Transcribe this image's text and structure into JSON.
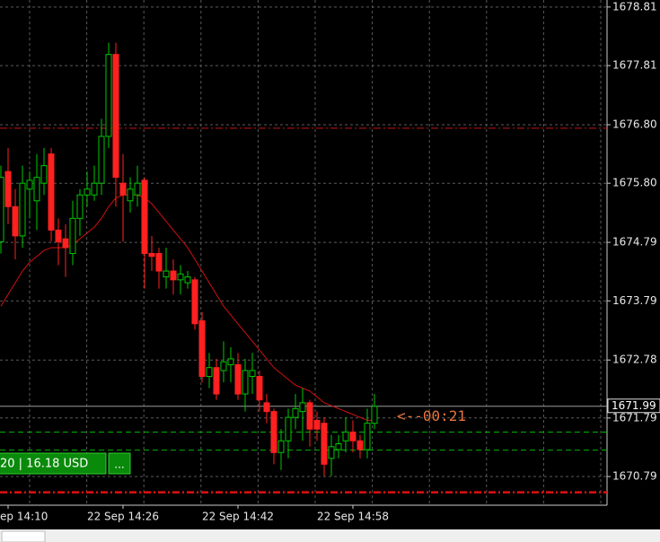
{
  "chart_data": {
    "type": "candlestick",
    "categories": [
      null,
      "ep 14:10",
      null,
      null,
      null,
      null,
      null,
      null,
      null,
      null,
      null,
      null,
      null,
      null,
      null,
      null,
      null,
      "22 Sep 14:26",
      null,
      null,
      null,
      null,
      null,
      null,
      null,
      null,
      null,
      null,
      null,
      null,
      null,
      null,
      null,
      "22 Sep 14:42",
      null,
      null,
      null,
      null,
      null,
      null,
      null,
      null,
      null,
      null,
      null,
      null,
      null,
      null,
      null,
      "22 Sep 14:58",
      null,
      null,
      null
    ],
    "open": [
      1674.8,
      1676.0,
      1675.4,
      1674.9,
      1675.7,
      1675.5,
      1675.8,
      1676.3,
      1675.0,
      1674.85,
      1674.6,
      1675.2,
      1675.6,
      1675.6,
      1675.8,
      1676.6,
      1678.0,
      1675.8,
      1675.5,
      1675.6,
      1675.85,
      1674.6,
      1674.6,
      1674.2,
      1674.3,
      1674.15,
      1674.1,
      1674.15,
      1673.45,
      1672.5,
      1672.65,
      1672.6,
      1672.7,
      1672.7,
      1672.2,
      1672.5,
      1672.5,
      1672.05,
      1671.9,
      1671.2,
      1671.4,
      1671.8,
      1671.9,
      1672.05,
      1671.75,
      1671.7,
      1671.1,
      1671.25,
      1671.4,
      1671.55,
      1671.4,
      1671.25,
      1671.7
    ],
    "high": [
      1676.1,
      1676.4,
      1675.7,
      1676.1,
      1676.0,
      1676.3,
      1676.4,
      1676.4,
      1675.2,
      1675.1,
      1675.5,
      1675.7,
      1676.0,
      1676.1,
      1676.9,
      1678.2,
      1678.2,
      1676.3,
      1675.9,
      1676.1,
      1675.9,
      1674.9,
      1674.7,
      1674.7,
      1674.5,
      1674.4,
      1674.3,
      1674.2,
      1673.6,
      1672.9,
      1672.8,
      1673.1,
      1673.0,
      1672.9,
      1672.8,
      1672.9,
      1672.6,
      1672.2,
      1671.95,
      1671.6,
      1671.95,
      1672.2,
      1672.3,
      1672.1,
      1671.9,
      1671.8,
      1671.5,
      1671.5,
      1671.8,
      1671.75,
      1671.5,
      1671.95,
      1672.2
    ],
    "low": [
      1674.6,
      1675.1,
      1674.5,
      1674.7,
      1675.2,
      1675.0,
      1675.6,
      1674.8,
      1674.4,
      1674.2,
      1674.4,
      1674.9,
      1675.4,
      1675.5,
      1675.6,
      1676.4,
      1675.4,
      1674.8,
      1675.3,
      1675.4,
      1674.0,
      1674.3,
      1674.0,
      1674.0,
      1673.9,
      1673.9,
      1674.0,
      1673.3,
      1672.4,
      1672.3,
      1672.1,
      1672.4,
      1672.4,
      1672.1,
      1671.9,
      1672.2,
      1671.9,
      1671.7,
      1671.0,
      1670.9,
      1671.1,
      1671.6,
      1671.4,
      1671.3,
      1671.4,
      1670.8,
      1670.8,
      1671.1,
      1671.2,
      1671.2,
      1671.1,
      1671.1,
      1671.6
    ],
    "close": [
      1675.9,
      1675.4,
      1674.9,
      1675.8,
      1675.85,
      1675.9,
      1676.1,
      1675.0,
      1674.8,
      1674.7,
      1675.2,
      1675.6,
      1675.7,
      1675.8,
      1676.6,
      1678.0,
      1675.9,
      1675.6,
      1675.7,
      1675.8,
      1674.6,
      1674.55,
      1674.3,
      1674.3,
      1674.15,
      1674.25,
      1674.2,
      1673.4,
      1672.5,
      1672.65,
      1672.2,
      1672.75,
      1672.8,
      1672.2,
      1672.6,
      1672.6,
      1672.1,
      1671.9,
      1671.2,
      1671.4,
      1671.8,
      1671.95,
      1672.05,
      1671.6,
      1671.6,
      1671.0,
      1671.3,
      1671.35,
      1671.55,
      1671.4,
      1671.25,
      1671.7,
      1671.99
    ],
    "up_color": "#00c800",
    "down_color": "#ff2020",
    "ma": {
      "color": "#d01010",
      "values": [
        1673.7,
        1673.9,
        1674.1,
        1674.3,
        1674.45,
        1674.55,
        1674.65,
        1674.7,
        1674.7,
        1674.7,
        1674.75,
        1674.85,
        1674.95,
        1675.05,
        1675.2,
        1675.4,
        1675.55,
        1675.6,
        1675.6,
        1675.6,
        1675.55,
        1675.45,
        1675.3,
        1675.15,
        1675.0,
        1674.85,
        1674.7,
        1674.5,
        1674.3,
        1674.1,
        1673.9,
        1673.7,
        1673.55,
        1673.4,
        1673.25,
        1673.1,
        1672.95,
        1672.8,
        1672.65,
        1672.55,
        1672.45,
        1672.35,
        1672.3,
        1672.25,
        1672.15,
        1672.05,
        1672.0,
        1671.95,
        1671.9,
        1671.85,
        1671.8,
        1671.75,
        1671.75
      ]
    },
    "ylim": [
      1670.3,
      1678.93
    ],
    "yticks": [
      1678.81,
      1677.81,
      {
        "value": 1676.8,
        "label": "1676.80"
      },
      {
        "value": 1675.8,
        "label": "1675.80"
      },
      1674.79,
      1673.79,
      1672.78,
      1671.79,
      1670.79
    ],
    "grid": true,
    "current_price": 1671.99,
    "levels": [
      {
        "value": 1676.74,
        "color": "#c81414"
      },
      {
        "value": 1671.55,
        "color": "#00b400"
      },
      {
        "value": 1671.24,
        "color": "#00b400"
      },
      {
        "value": 1670.52,
        "color": "#e01010"
      }
    ],
    "countdown": "<--00:21",
    "trade_label": "20 | 16.18 USD",
    "button": "..."
  }
}
